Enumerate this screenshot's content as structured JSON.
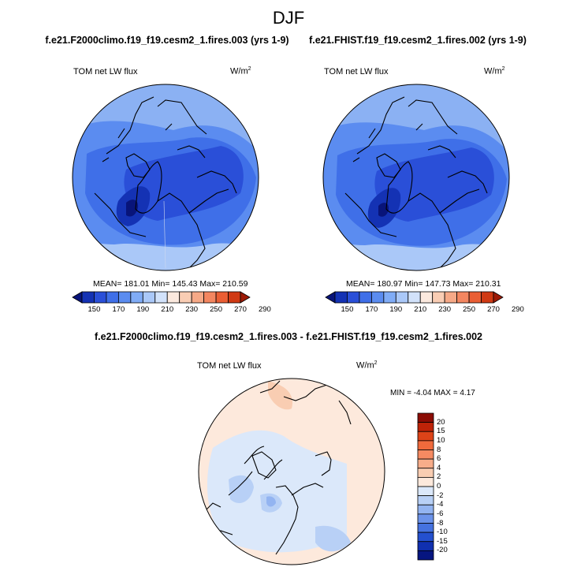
{
  "title": "DJF",
  "panels": [
    {
      "case_title": "f.e21.F2000climo.f19_f19.cesm2_1.fires.003 (yrs 1-9)",
      "variable": "TOM net LW flux",
      "units": "W/m",
      "units_sup": "2",
      "stats": "MEAN= 181.01  Min= 145.43  Max= 210.59"
    },
    {
      "case_title": "f.e21.FHIST.f19_f19.cesm2_1.fires.002 (yrs 1-9)",
      "variable": "TOM net LW flux",
      "units": "W/m",
      "units_sup": "2",
      "stats": "MEAN= 180.97  Min= 147.73  Max= 210.31"
    }
  ],
  "diff_panel": {
    "case_title": "f.e21.F2000climo.f19_f19.cesm2_1.fires.003 - f.e21.FHIST.f19_f19.cesm2_1.fires.002",
    "variable": "TOM net LW flux",
    "units": "W/m",
    "units_sup": "2",
    "stats": "MIN =  -4.04 MAX =   4.17"
  },
  "abs_colorbar": {
    "orientation": "horizontal",
    "tick_labels": [
      "150",
      "170",
      "190",
      "210",
      "230",
      "250",
      "270",
      "290"
    ],
    "colors": [
      "#08147a",
      "#1432b4",
      "#2a4fd8",
      "#3f6fe8",
      "#5b8cf0",
      "#80acf6",
      "#aac8f8",
      "#d2e2fa",
      "#fbe9de",
      "#f9cdb4",
      "#f6a987",
      "#f38660",
      "#ea5e34",
      "#d03a14",
      "#9c1a06"
    ]
  },
  "diff_colorbar": {
    "orientation": "vertical",
    "tick_labels": [
      "20",
      "15",
      "10",
      "8",
      "6",
      "4",
      "2",
      "0",
      "-2",
      "-4",
      "-6",
      "-8",
      "-10",
      "-15",
      "-20"
    ],
    "colors": [
      "#8b0c04",
      "#be2308",
      "#dd4318",
      "#ef6a3c",
      "#f58a62",
      "#f7ad8a",
      "#f9cdb2",
      "#fde9dc",
      "#dbe8fa",
      "#b8d0f6",
      "#93b4f1",
      "#6c93ea",
      "#4572e0",
      "#2450cf",
      "#1030b0",
      "#061580"
    ]
  }
}
